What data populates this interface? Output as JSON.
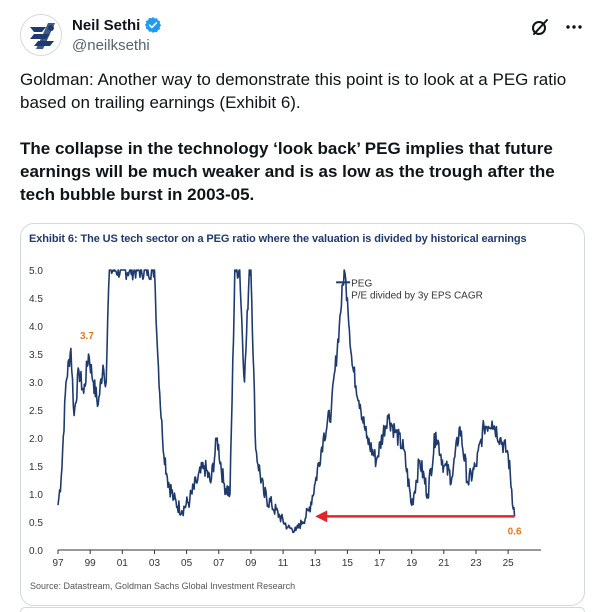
{
  "author": {
    "display_name": "Neil Sethi",
    "handle": "@neilksethi"
  },
  "tweet": {
    "paragraph1": "Goldman: Another way to demonstrate this point is to look at a PEG ratio based on trailing earnings (Exhibit 6).",
    "paragraph2": "The collapse in the technology ‘look back’ PEG implies that future earnings will be much weaker and is as low as the trough after the tech bubble burst in 2003-05."
  },
  "icons": {
    "avatar": "logo-icon",
    "verified": "verified-badge-icon",
    "grok": "grok-icon",
    "more": "more-icon"
  },
  "colors": {
    "series": "#1f3b6e",
    "annotation": "#e8791e",
    "arrow": "#e0262b",
    "verified": "#1d9bf0"
  },
  "chart_data": {
    "type": "line",
    "title": "Exhibit 6: The US tech sector on a PEG ratio where the valuation is divided by historical earnings",
    "source": "Source: Datastream, Goldman Sachs Global Investment Research",
    "legend": {
      "series_name": "PEG",
      "subtitle": "P/E divided by 3y EPS CAGR",
      "placement": "top-center"
    },
    "ylim": [
      0,
      5
    ],
    "y_ticks": [
      "0.0",
      "0.5",
      "1.0",
      "1.5",
      "2.0",
      "2.5",
      "3.0",
      "3.5",
      "4.0",
      "4.5",
      "5.0"
    ],
    "x_ticks": [
      "97",
      "99",
      "01",
      "03",
      "05",
      "07",
      "09",
      "11",
      "13",
      "15",
      "17",
      "19",
      "21",
      "23",
      "25"
    ],
    "xlim": [
      1997,
      2025.8
    ],
    "grid": false,
    "annotations": [
      {
        "label": "3.7",
        "x": 1998.8,
        "y": 3.7
      },
      {
        "label": "0.6",
        "x": 2025.4,
        "y": 0.6
      }
    ],
    "arrow": {
      "from_x": 2025.4,
      "to_x": 2013.0,
      "y": 0.6
    },
    "series": [
      {
        "name": "PEG",
        "x": [
          1997.0,
          1997.2,
          1997.5,
          1997.8,
          1998.0,
          1998.3,
          1998.6,
          1998.9,
          1999.2,
          1999.5,
          1999.8,
          2000.0,
          2000.1,
          2000.2,
          2000.25,
          2003.0,
          2003.2,
          2003.5,
          2003.8,
          2004.2,
          2004.7,
          2005.2,
          2005.6,
          2006.1,
          2006.5,
          2006.9,
          2007.3,
          2007.7,
          2008.0,
          2008.3,
          2008.6,
          2008.9,
          2009.0,
          2009.05,
          2009.3,
          2009.8,
          2010.3,
          2010.8,
          2011.3,
          2011.8,
          2012.2,
          2012.6,
          2013.0,
          2013.5,
          2014.0,
          2014.5,
          2014.8,
          2015.0,
          2015.3,
          2015.8,
          2016.2,
          2016.8,
          2017.5,
          2018.0,
          2018.5,
          2019.0,
          2019.5,
          2020.0,
          2020.5,
          2021.0,
          2021.5,
          2022.0,
          2022.5,
          2023.0,
          2023.5,
          2024.0,
          2024.5,
          2025.0,
          2025.4
        ],
        "y": [
          0.8,
          1.3,
          3.0,
          3.6,
          2.4,
          3.2,
          2.8,
          3.5,
          3.0,
          2.6,
          3.3,
          3.0,
          4.2,
          5.0,
          5.0,
          5.0,
          3.5,
          2.0,
          1.3,
          0.9,
          0.7,
          0.9,
          1.2,
          1.5,
          1.2,
          2.0,
          1.2,
          1.0,
          5.0,
          5.0,
          3.0,
          5.0,
          5.0,
          4.5,
          1.8,
          1.0,
          0.8,
          0.6,
          0.4,
          0.35,
          0.5,
          0.7,
          1.2,
          2.0,
          2.5,
          4.0,
          5.0,
          4.5,
          3.3,
          2.6,
          2.0,
          1.6,
          2.4,
          2.1,
          1.8,
          0.8,
          1.6,
          1.0,
          2.1,
          1.5,
          1.3,
          2.2,
          1.2,
          1.5,
          2.2,
          2.3,
          2.0,
          1.7,
          0.6
        ]
      }
    ]
  }
}
